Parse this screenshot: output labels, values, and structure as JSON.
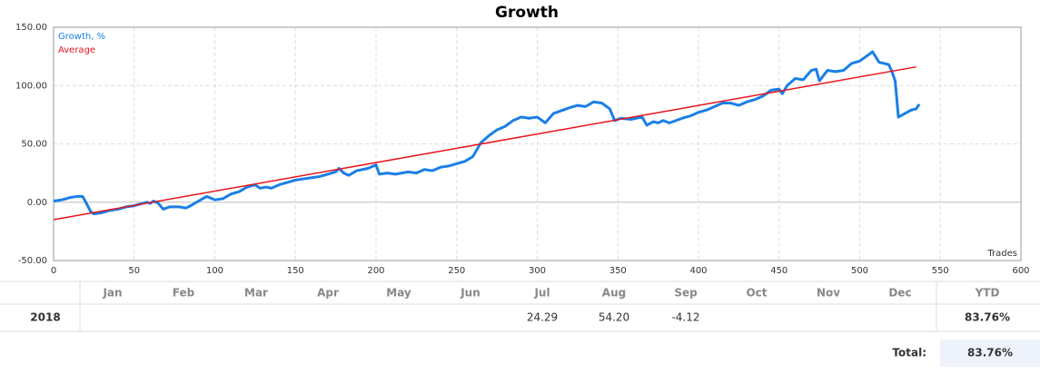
{
  "chart_data": {
    "type": "line",
    "title": "Growth",
    "x_label": "Trades",
    "xlim": [
      0,
      600
    ],
    "xticks": [
      0,
      50,
      100,
      150,
      200,
      250,
      300,
      350,
      400,
      450,
      500,
      550,
      600
    ],
    "ylim": [
      -50,
      150
    ],
    "yticks": [
      {
        "value": -50,
        "label": "-50.00"
      },
      {
        "value": 0,
        "label": "0.00"
      },
      {
        "value": 50,
        "label": "50.00"
      },
      {
        "value": 100,
        "label": "100.00"
      },
      {
        "value": 150,
        "label": "150.00"
      }
    ],
    "grid": true,
    "legend": "top-left",
    "series": [
      {
        "name": "Growth, %",
        "color": "#1a7fe6",
        "x": [
          0,
          5,
          8,
          10,
          15,
          18,
          20,
          23,
          25,
          30,
          35,
          40,
          45,
          50,
          55,
          58,
          60,
          62,
          65,
          68,
          72,
          78,
          82,
          85,
          90,
          95,
          100,
          105,
          110,
          115,
          120,
          125,
          128,
          132,
          135,
          140,
          145,
          150,
          155,
          160,
          165,
          170,
          175,
          177,
          180,
          183,
          188,
          195,
          200,
          202,
          207,
          212,
          220,
          225,
          230,
          235,
          240,
          245,
          250,
          255,
          260,
          265,
          270,
          275,
          280,
          285,
          290,
          295,
          300,
          305,
          310,
          320,
          325,
          330,
          335,
          340,
          345,
          348,
          352,
          358,
          365,
          368,
          372,
          375,
          378,
          382,
          390,
          395,
          400,
          405,
          410,
          415,
          420,
          425,
          430,
          435,
          440,
          445,
          450,
          452,
          455,
          460,
          465,
          470,
          473,
          475,
          480,
          485,
          490,
          495,
          500,
          503,
          508,
          512,
          515,
          518,
          520,
          522,
          524,
          528,
          532,
          535,
          537
        ],
        "values": [
          1,
          2,
          3,
          4,
          5,
          5,
          0,
          -8,
          -10,
          -9,
          -7,
          -6,
          -4,
          -3,
          -1,
          0,
          -1,
          1,
          -1,
          -6,
          -4,
          -4,
          -5,
          -3,
          1,
          5,
          2,
          3,
          7,
          9,
          13,
          15,
          12,
          13,
          12,
          15,
          17,
          19,
          20,
          21,
          22,
          24,
          26,
          29,
          25,
          23,
          27,
          29,
          32,
          24,
          25,
          24,
          26,
          25,
          28,
          27,
          30,
          31,
          33,
          35,
          39,
          51,
          57,
          62,
          65,
          70,
          73,
          72,
          73,
          68,
          76,
          81,
          83,
          82,
          86,
          85,
          80,
          70,
          72,
          71,
          73,
          66,
          69,
          68,
          70,
          68,
          72,
          74,
          77,
          79,
          82,
          85,
          85,
          83,
          86,
          88,
          91,
          96,
          97,
          93,
          100,
          106,
          105,
          113,
          114,
          104,
          113,
          112,
          113,
          119,
          121,
          124,
          129,
          120,
          119,
          118,
          112,
          104,
          73,
          76,
          79,
          80,
          84
        ]
      },
      {
        "name": "Average",
        "color": "#e8141c",
        "x": [
          0,
          535
        ],
        "values": [
          -15,
          116
        ]
      }
    ]
  },
  "table": {
    "header": [
      "Jan",
      "Feb",
      "Mar",
      "Apr",
      "May",
      "Jun",
      "Jul",
      "Aug",
      "Sep",
      "Oct",
      "Nov",
      "Dec",
      "YTD"
    ],
    "rows": [
      {
        "year": "2018",
        "months": [
          null,
          null,
          null,
          null,
          null,
          null,
          "24.29",
          "54.20",
          "-4.12",
          null,
          null,
          null
        ],
        "ytd": "83.76%"
      }
    ],
    "total_label": "Total:",
    "total": "83.76%"
  }
}
